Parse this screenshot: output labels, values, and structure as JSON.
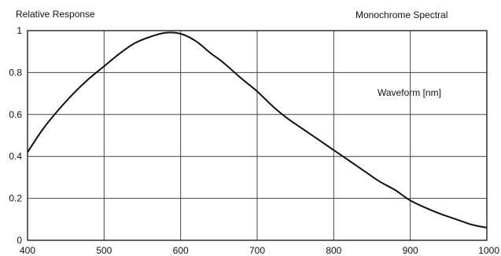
{
  "chart_data": {
    "type": "line",
    "title": "Monochrome Spectral",
    "ylabel": "Relative Response",
    "annotation": "Waveform [nm]",
    "xlim": [
      400,
      1000
    ],
    "ylim": [
      0,
      1
    ],
    "xticks": [
      400,
      500,
      600,
      700,
      800,
      900,
      1000
    ],
    "yticks": [
      0,
      0.2,
      0.4,
      0.6,
      0.8,
      1
    ],
    "ytick_labels": [
      "0",
      "0.2",
      "0.4",
      "0.6",
      "0.8",
      "1"
    ],
    "grid": true,
    "series": [
      {
        "x": [
          400,
          420,
          440,
          460,
          480,
          500,
          520,
          540,
          560,
          580,
          600,
          620,
          640,
          655,
          680,
          700,
          720,
          740,
          760,
          780,
          800,
          820,
          840,
          860,
          880,
          900,
          920,
          940,
          960,
          980,
          1000
        ],
        "y": [
          0.42,
          0.53,
          0.62,
          0.7,
          0.77,
          0.83,
          0.89,
          0.94,
          0.97,
          0.99,
          0.985,
          0.95,
          0.89,
          0.85,
          0.77,
          0.71,
          0.64,
          0.58,
          0.53,
          0.48,
          0.43,
          0.38,
          0.33,
          0.28,
          0.24,
          0.19,
          0.155,
          0.125,
          0.1,
          0.075,
          0.06
        ]
      }
    ],
    "colors": {
      "curve": "#111111",
      "grid": "#444444"
    }
  }
}
